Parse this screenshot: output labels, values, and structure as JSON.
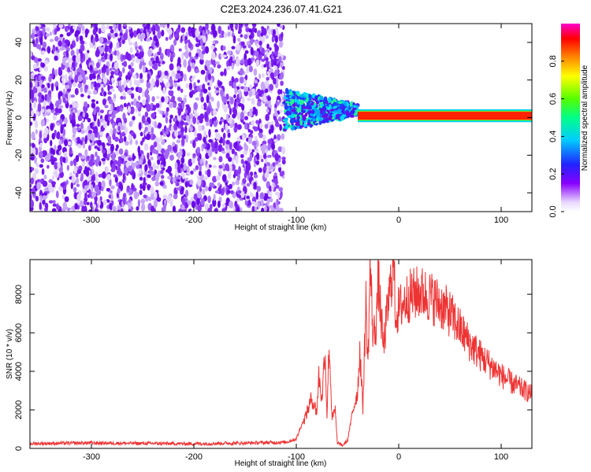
{
  "title": "C2E3.2024.236.07.41.G21",
  "chart_data": [
    {
      "type": "heatmap",
      "xlabel": "Height of straight line (km)",
      "ylabel": "Frequency (Hz)",
      "xlim": [
        -360,
        130
      ],
      "ylim": [
        -50,
        50
      ],
      "xticks": [
        -300,
        -200,
        -100,
        0,
        100
      ],
      "yticks": [
        -40,
        -20,
        0,
        20,
        40
      ],
      "colorbar": {
        "label": "Normalized spectral amplitude",
        "range": [
          0,
          1
        ],
        "ticks": [
          0.0,
          0.2,
          0.4,
          0.6,
          0.8
        ],
        "colormap": "rainbow-violet-to-magenta"
      },
      "regions": [
        {
          "description": "broadband noise",
          "x_range": [
            -360,
            -112
          ],
          "y_range": [
            -50,
            50
          ],
          "amplitude": 0.1
        },
        {
          "description": "transition",
          "x_range": [
            -112,
            -40
          ],
          "y_range": [
            -15,
            12
          ],
          "amplitude": 0.3
        },
        {
          "description": "narrow signal near 0 Hz",
          "x_range": [
            -40,
            130
          ],
          "y_range": [
            -2,
            4
          ],
          "amplitude": 0.9
        }
      ]
    },
    {
      "type": "line",
      "xlabel": "Height of straight line (km)",
      "ylabel": "SNR (10 * v/v)",
      "xlim": [
        -360,
        130
      ],
      "ylim": [
        0,
        9800
      ],
      "xticks": [
        -300,
        -200,
        -100,
        0,
        100
      ],
      "yticks": [
        0,
        2000,
        4000,
        6000,
        8000
      ],
      "series": [
        {
          "color": "#ee3333",
          "x": [
            -360,
            -300,
            -250,
            -200,
            -150,
            -110,
            -100,
            -95,
            -90,
            -85,
            -80,
            -78,
            -75,
            -72,
            -70,
            -68,
            -65,
            -62,
            -60,
            -55,
            -50,
            -45,
            -40,
            -38,
            -35,
            -32,
            -30,
            -28,
            -25,
            -22,
            -20,
            -15,
            -10,
            -5,
            -3,
            0,
            5,
            10,
            20,
            30,
            40,
            50,
            60,
            70,
            80,
            90,
            100,
            110,
            120,
            130
          ],
          "y": [
            250,
            280,
            260,
            240,
            280,
            320,
            500,
            1200,
            1800,
            2600,
            1900,
            3800,
            2500,
            5200,
            1700,
            5500,
            1500,
            2000,
            300,
            150,
            400,
            1900,
            3000,
            5200,
            2100,
            7600,
            4200,
            9600,
            5800,
            6500,
            8800,
            5200,
            7600,
            9700,
            6900,
            7200,
            7600,
            7900,
            8100,
            7900,
            7500,
            7000,
            6200,
            5400,
            4800,
            4300,
            3800,
            3400,
            3100,
            2800
          ]
        }
      ]
    }
  ]
}
